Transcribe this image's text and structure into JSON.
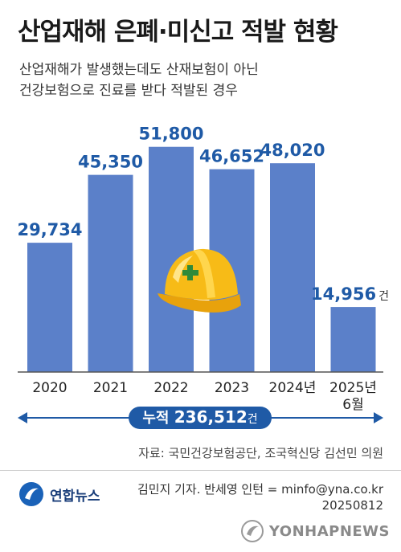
{
  "title": "산업재해 은폐·미신고 적발 현황",
  "subtitle_lines": [
    "산업재해가 발생했는데도 산재보험이 아닌",
    "건강보험으로 진료를 받다 적발된 경우"
  ],
  "chart_data": {
    "type": "bar",
    "categories": [
      "2020",
      "2021",
      "2022",
      "2023",
      "2024년",
      "2025년 6월"
    ],
    "values": [
      29734,
      45350,
      51800,
      46652,
      48020,
      14956
    ],
    "value_labels": [
      "29,734",
      "45,350",
      "51,800",
      "46,652",
      "48,020",
      "14,956"
    ],
    "unit": "건",
    "ylim": [
      0,
      56000
    ],
    "bar_color": "#5b80c9",
    "label_color": "#1f5aa6",
    "total": {
      "label": "누적",
      "value": 236512,
      "value_text": "236,512",
      "unit": "건"
    }
  },
  "source": "자료: 국민건강보험공단, 조국혁신당 김선민 의원",
  "logo_text": "연합뉴스",
  "credit": "김민지 기자. 반세영 인턴 = minfo@yna.co.kr",
  "date": "20250812",
  "watermark": "YONHAPNEWS",
  "icons": {
    "helmet": "hard-hat-icon",
    "logo": "yonhap-logo-icon",
    "watermark": "yonhap-watermark-icon"
  }
}
